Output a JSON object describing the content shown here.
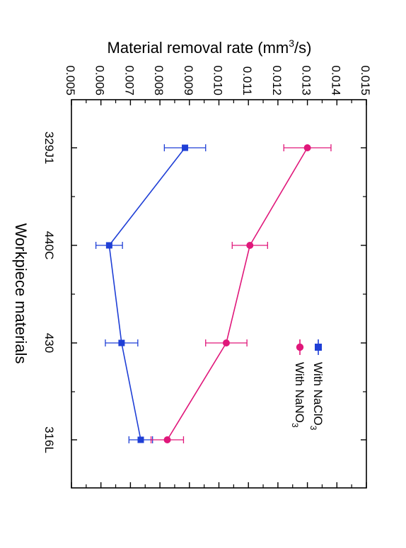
{
  "chart_data": {
    "type": "line",
    "orientation": "rotated-90-clockwise",
    "xlabel": "Workpiece materials",
    "ylabel_main": "Material removal rate (mm",
    "ylabel_sup": "3",
    "ylabel_tail": "/s)",
    "categories": [
      "329J1",
      "440C",
      "430",
      "316L"
    ],
    "ylim": [
      0.005,
      0.015
    ],
    "yticks": [
      "0.005",
      "0.006",
      "0.007",
      "0.008",
      "0.009",
      "0.010",
      "0.011",
      "0.012",
      "0.013",
      "0.014",
      "0.015"
    ],
    "grid": false,
    "legend_position": "bottom-right",
    "series": [
      {
        "name": "With NaClO",
        "name_sub": "3",
        "color": "#1f3fd6",
        "marker": "square",
        "values": [
          0.00885,
          0.00628,
          0.0067,
          0.00735
        ],
        "errors": [
          0.0007,
          0.00045,
          0.00055,
          0.0004
        ]
      },
      {
        "name": "With NaNO",
        "name_sub": "3",
        "color": "#e0177a",
        "marker": "circle",
        "values": [
          0.013,
          0.01105,
          0.01025,
          0.00825
        ],
        "errors": [
          0.0008,
          0.0006,
          0.0007,
          0.00055
        ]
      }
    ]
  }
}
